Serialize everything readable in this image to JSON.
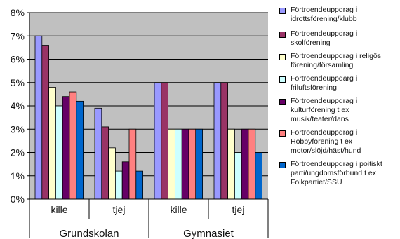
{
  "chart_data": {
    "type": "bar",
    "ylim": [
      0,
      8
    ],
    "y_ticks": [
      "0%",
      "1%",
      "2%",
      "3%",
      "4%",
      "5%",
      "6%",
      "7%",
      "8%"
    ],
    "y_unit": "%",
    "grid": true,
    "legend_placement": "right",
    "plot_background": "#c0c0c0",
    "categories": [
      "kille",
      "tjej",
      "kille",
      "tjej"
    ],
    "groups": [
      {
        "label": "Grundskolan",
        "span": [
          0,
          1
        ]
      },
      {
        "label": "Gymnasiet",
        "span": [
          2,
          3
        ]
      }
    ],
    "series": [
      {
        "name": "Förtroendeuppdrag i idrottsförening/klubb",
        "color": "#9999ff",
        "values": [
          7.0,
          3.9,
          5.0,
          5.0
        ]
      },
      {
        "name": "Förtroendeuppdrag i skolförening",
        "color": "#993366",
        "values": [
          6.6,
          3.1,
          5.0,
          5.0
        ]
      },
      {
        "name": "Förtroendeuppdrag i religös förening/församling",
        "color": "#ffffcc",
        "values": [
          4.8,
          2.2,
          3.0,
          3.0
        ]
      },
      {
        "name": "Förtroendeuppdarg i friluftsförening",
        "color": "#ccffff",
        "values": [
          4.0,
          1.2,
          3.0,
          2.0
        ]
      },
      {
        "name": "Förtroendeuppdrag i kulturförening t ex musik/teater/dans",
        "color": "#660066",
        "values": [
          4.4,
          1.6,
          3.0,
          3.0
        ]
      },
      {
        "name": "Förtroendeuppdrag i Hobbyförening t ex motor/slöjd/häst/hund",
        "color": "#ff8080",
        "values": [
          4.6,
          3.0,
          3.0,
          3.0
        ]
      },
      {
        "name": "Förtroendeuppdrag i poitiskt parti/ungdomsförbund t ex Folkpartiet/SSU",
        "color": "#0066cc",
        "values": [
          4.2,
          1.2,
          3.0,
          2.0
        ]
      }
    ]
  }
}
